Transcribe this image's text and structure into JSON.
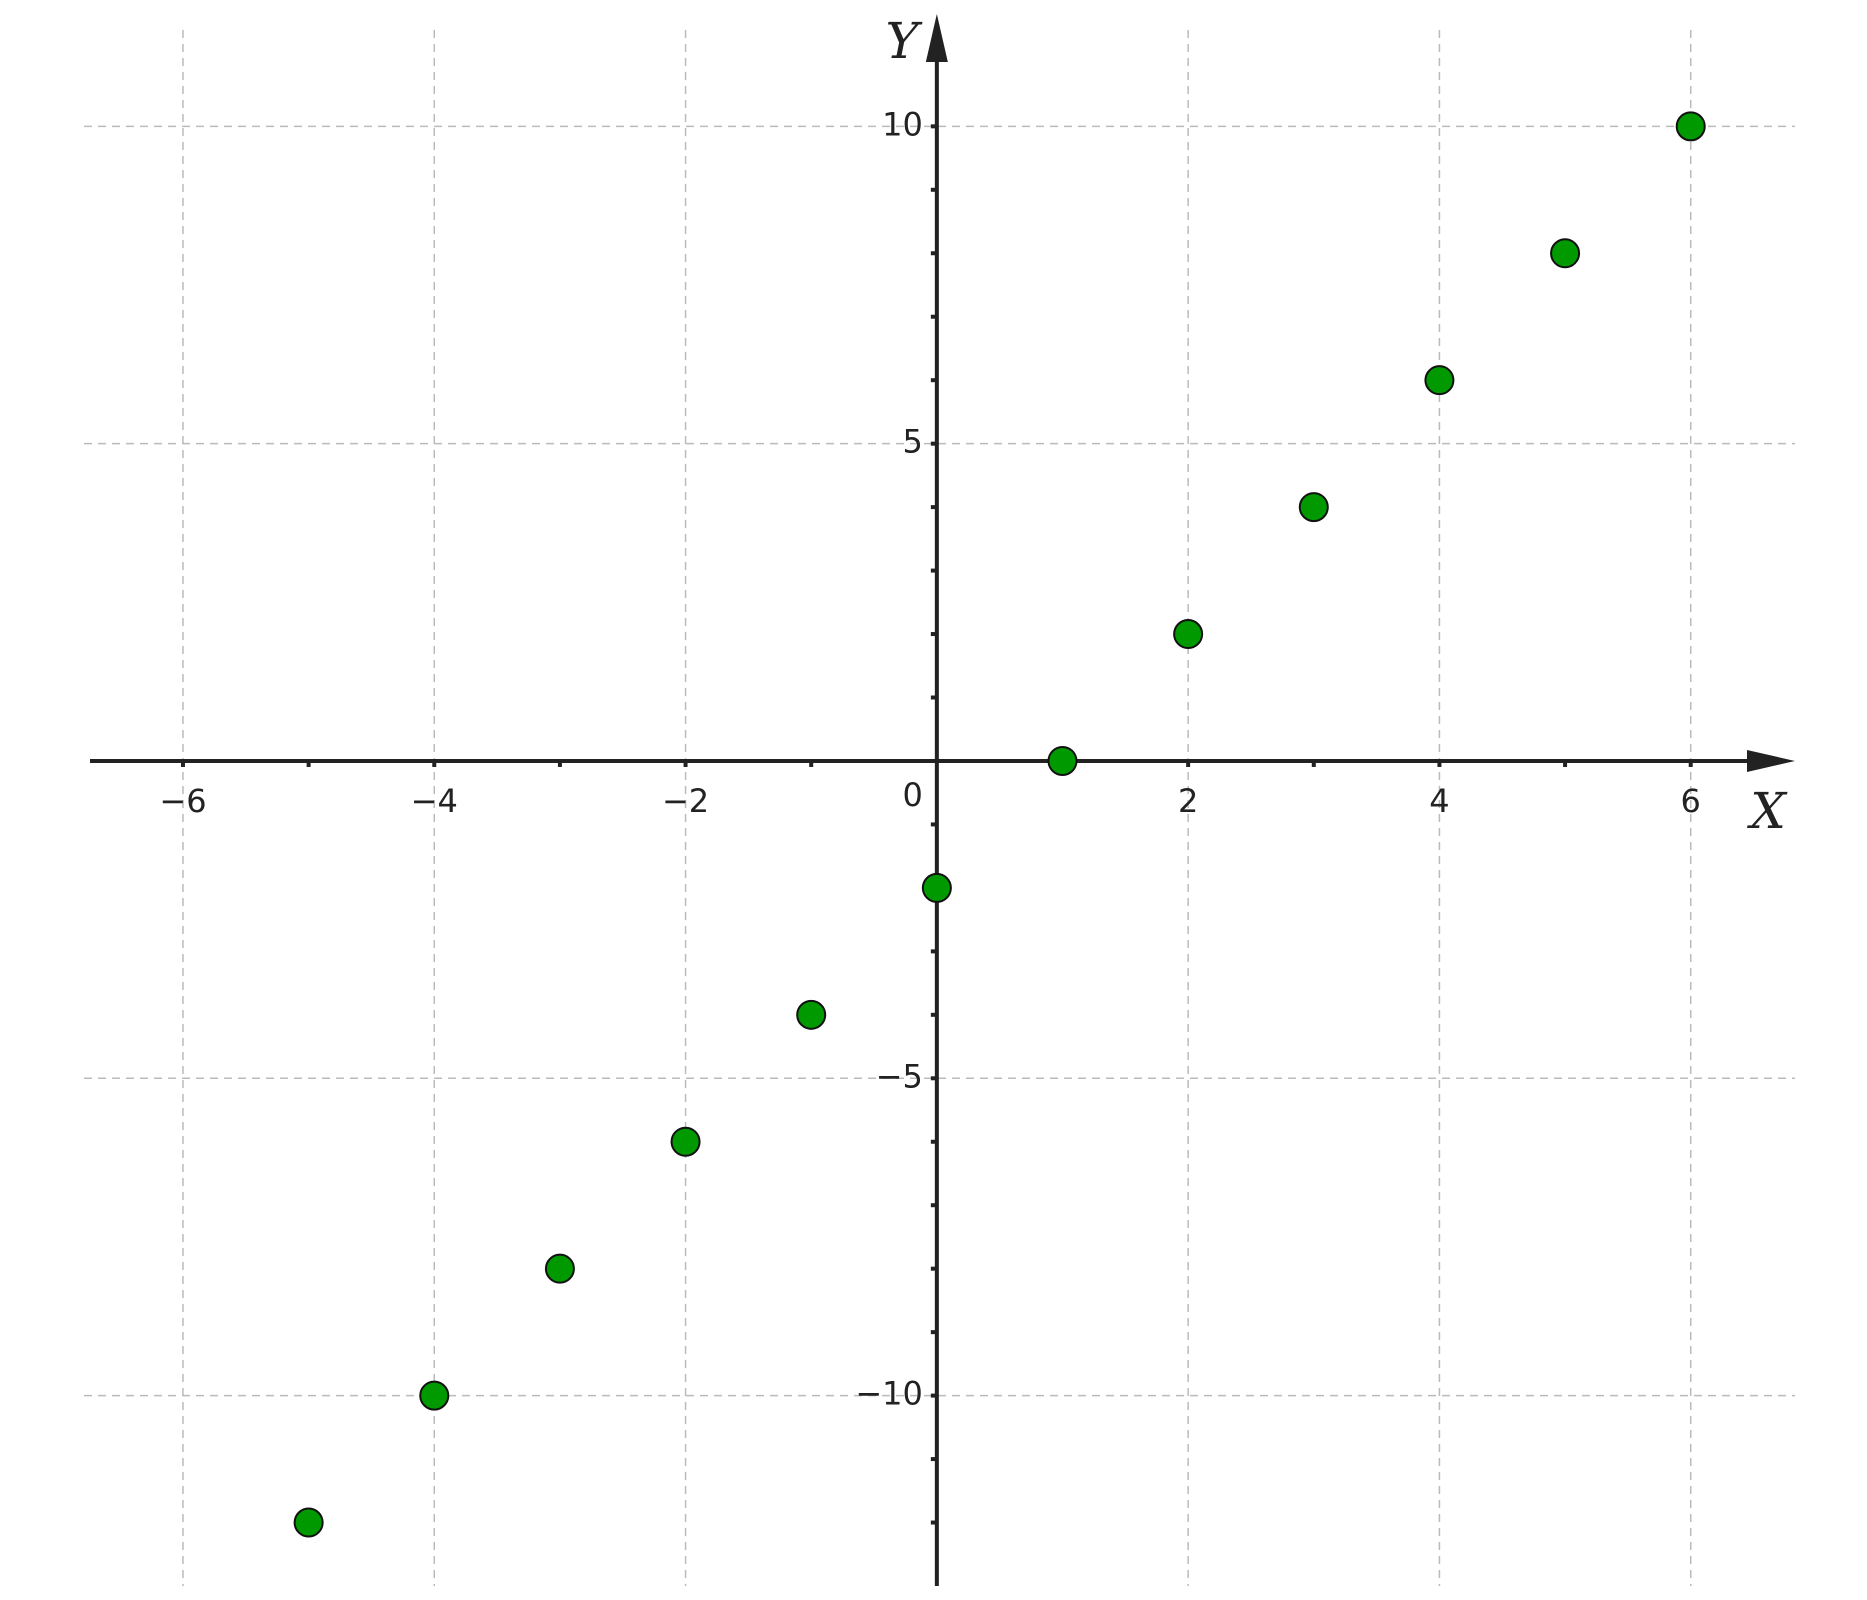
{
  "chart_data": {
    "type": "scatter",
    "x_label": "X",
    "y_label": "Y",
    "x": [
      -5,
      -4,
      -3,
      -2,
      -1,
      0,
      1,
      2,
      3,
      4,
      5,
      6
    ],
    "series": [
      {
        "color": "#009900",
        "values": [
          -12,
          -10,
          -8,
          -6,
          -4,
          -2,
          0,
          2,
          4,
          6,
          8,
          10
        ]
      }
    ],
    "xlim": [
      -6.74,
      6.83
    ],
    "ylim": [
      -13,
      11.77
    ],
    "xticks": [
      {
        "value": -6,
        "label": "−6"
      },
      {
        "value": -4,
        "label": "−4"
      },
      {
        "value": -2,
        "label": "−2"
      },
      2,
      4,
      6
    ],
    "yticks": [
      {
        "value": -10,
        "label": "−10"
      },
      {
        "value": -5,
        "label": "−5"
      },
      5,
      10
    ],
    "origin_label": "0",
    "xminorticks": [
      -5,
      -3,
      -1,
      1,
      3,
      5
    ],
    "yminorticks": [
      -12,
      -11,
      -9,
      -8,
      -7,
      -6,
      -4,
      -3,
      -2,
      -1,
      1,
      2,
      3,
      4,
      6,
      7,
      8,
      9
    ],
    "grid": true
  }
}
